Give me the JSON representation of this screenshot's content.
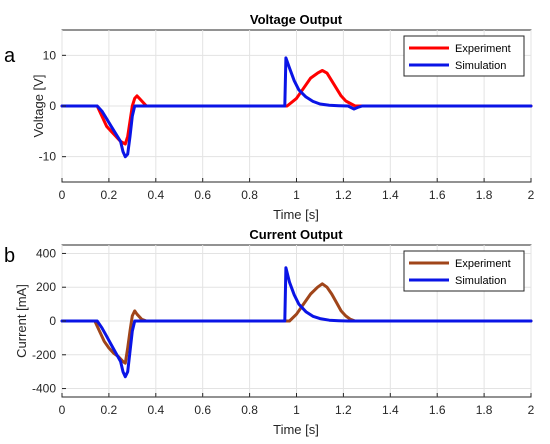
{
  "chart_data": [
    {
      "type": "line",
      "panel_letter": "a",
      "title": "Voltage Output",
      "xlabel": "Time [s]",
      "ylabel": "Voltage [V]",
      "xlim": [
        0,
        2
      ],
      "ylim": [
        -15,
        15
      ],
      "xticks": [
        "0",
        "0.2",
        "0.4",
        "0.6",
        "0.8",
        "1",
        "1.2",
        "1.4",
        "1.6",
        "1.8",
        "2"
      ],
      "yticks": [
        "-10",
        "0",
        "10"
      ],
      "ytick_values": [
        -10,
        0,
        10
      ],
      "grid": true,
      "legend": "top-right",
      "series": [
        {
          "name": "Experiment",
          "color": "#ff0000",
          "x": [
            0,
            0.15,
            0.17,
            0.19,
            0.21,
            0.23,
            0.25,
            0.27,
            0.28,
            0.29,
            0.3,
            0.31,
            0.32,
            0.33,
            0.35,
            0.36,
            0.9,
            0.96,
            1.0,
            1.03,
            1.06,
            1.09,
            1.11,
            1.13,
            1.15,
            1.17,
            1.19,
            1.21,
            1.23,
            1.25,
            1.27,
            1.3,
            2.0
          ],
          "y": [
            0,
            0,
            -2,
            -4,
            -5,
            -6,
            -7,
            -7.5,
            -6,
            -3,
            0,
            1.5,
            2,
            1.5,
            0.5,
            0,
            0,
            0,
            1.5,
            3.5,
            5.5,
            6.5,
            7,
            6.5,
            5,
            3.5,
            2,
            1,
            0.5,
            0,
            0,
            0,
            0
          ]
        },
        {
          "name": "Simulation",
          "color": "#0a14e6",
          "x": [
            0,
            0.15,
            0.17,
            0.19,
            0.21,
            0.23,
            0.25,
            0.26,
            0.27,
            0.28,
            0.29,
            0.3,
            0.31,
            0.95,
            0.955,
            0.97,
            0.99,
            1.01,
            1.04,
            1.07,
            1.1,
            1.14,
            1.18,
            1.22,
            1.245,
            1.26,
            1.28,
            2.0
          ],
          "y": [
            0,
            0,
            -1,
            -2.5,
            -4,
            -5.5,
            -7,
            -9,
            -10,
            -9.5,
            -6,
            -2,
            0,
            0,
            9.5,
            7.5,
            5,
            3.2,
            1.8,
            0.9,
            0.4,
            0.15,
            0.05,
            0,
            -0.6,
            -0.3,
            0,
            0
          ]
        }
      ]
    },
    {
      "type": "line",
      "panel_letter": "b",
      "title": "Current Output",
      "xlabel": "Time [s]",
      "ylabel": "Current [mA]",
      "xlim": [
        0,
        2
      ],
      "ylim": [
        -450,
        450
      ],
      "xticks": [
        "0",
        "0.2",
        "0.4",
        "0.6",
        "0.8",
        "1",
        "1.2",
        "1.4",
        "1.6",
        "1.8",
        "2"
      ],
      "yticks": [
        "-400",
        "-200",
        "0",
        "200",
        "400"
      ],
      "ytick_values": [
        -400,
        -200,
        0,
        200,
        400
      ],
      "grid": true,
      "legend": "top-right",
      "series": [
        {
          "name": "Experiment",
          "color": "#a0451a",
          "x": [
            0,
            0.14,
            0.16,
            0.18,
            0.2,
            0.22,
            0.24,
            0.26,
            0.27,
            0.28,
            0.29,
            0.3,
            0.31,
            0.32,
            0.34,
            0.36,
            0.9,
            0.97,
            1.0,
            1.03,
            1.06,
            1.09,
            1.11,
            1.13,
            1.15,
            1.17,
            1.19,
            1.21,
            1.23,
            1.25,
            1.28,
            2.0
          ],
          "y": [
            0,
            0,
            -60,
            -120,
            -160,
            -190,
            -210,
            -240,
            -250,
            -160,
            -60,
            30,
            60,
            40,
            10,
            0,
            0,
            0,
            40,
            100,
            160,
            200,
            220,
            200,
            160,
            110,
            60,
            30,
            10,
            0,
            0,
            0
          ]
        },
        {
          "name": "Simulation",
          "color": "#0a14e6",
          "x": [
            0,
            0.15,
            0.17,
            0.19,
            0.21,
            0.23,
            0.25,
            0.26,
            0.27,
            0.28,
            0.29,
            0.3,
            0.31,
            0.95,
            0.955,
            0.97,
            0.99,
            1.01,
            1.04,
            1.07,
            1.1,
            1.14,
            1.18,
            1.22,
            1.25,
            2.0
          ],
          "y": [
            0,
            0,
            -40,
            -90,
            -140,
            -190,
            -240,
            -300,
            -330,
            -300,
            -180,
            -60,
            0,
            0,
            315,
            230,
            155,
            100,
            55,
            28,
            14,
            5,
            2,
            0,
            0,
            0
          ]
        }
      ]
    }
  ]
}
